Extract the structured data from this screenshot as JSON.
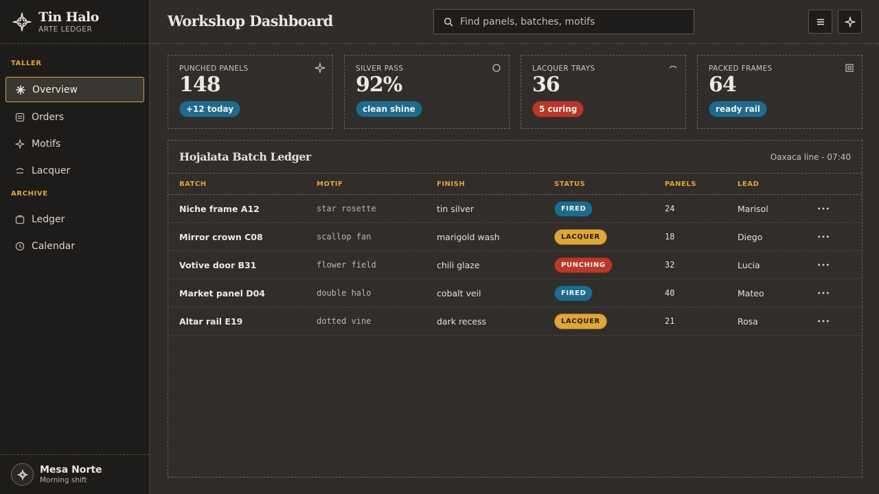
{
  "brand": {
    "title": "Tin Halo",
    "subtitle": "ARTE LEDGER",
    "icon": "star-compass-icon"
  },
  "sidebar": {
    "sections": [
      {
        "label": "TALLER",
        "items": [
          {
            "label": "Overview",
            "icon": "asterisk-icon",
            "active": true
          },
          {
            "label": "Orders",
            "icon": "list-icon"
          },
          {
            "label": "Motifs",
            "icon": "star-icon"
          },
          {
            "label": "Lacquer",
            "icon": "brush-icon"
          }
        ]
      },
      {
        "label": "ARCHIVE",
        "items": [
          {
            "label": "Ledger",
            "icon": "folder-icon"
          },
          {
            "label": "Calendar",
            "icon": "clock-icon"
          }
        ]
      }
    ],
    "user": {
      "name": "Mesa Norte",
      "shift": "Morning shift",
      "icon": "star-compass-icon"
    }
  },
  "header": {
    "title": "Workshop Dashboard",
    "search_placeholder": "Find panels, batches, motifs",
    "search_value": "",
    "buttons": [
      {
        "icon": "menu-icon"
      },
      {
        "icon": "sparkle-icon"
      }
    ]
  },
  "stats": [
    {
      "label": "PUNCHED PANELS",
      "value": "148",
      "badge": "+12 today",
      "badge_color": "#1f6b8e",
      "icon": "sparkle-icon"
    },
    {
      "label": "SILVER PASS",
      "value": "92%",
      "badge": "clean shine",
      "badge_color": "#1f6b8e",
      "icon": "circle-icon"
    },
    {
      "label": "LACQUER TRAYS",
      "value": "36",
      "badge": "5 curing",
      "badge_color": "#b8382b",
      "icon": "arc-icon"
    },
    {
      "label": "PACKED FRAMES",
      "value": "64",
      "badge": "ready rail",
      "badge_color": "#1f6b8e",
      "icon": "box-icon"
    }
  ],
  "ledger": {
    "title": "Hojalata Batch Ledger",
    "meta": "Oaxaca line - 07:40",
    "columns": [
      "BATCH",
      "MOTIF",
      "FINISH",
      "STATUS",
      "PANELS",
      "LEAD"
    ],
    "rows": [
      {
        "batch": "Niche frame A12",
        "motif": "star rosette",
        "finish": "tin silver",
        "status": "FIRED",
        "panels": "24",
        "lead": "Marisol"
      },
      {
        "batch": "Mirror crown C08",
        "motif": "scallop fan",
        "finish": "marigold wash",
        "status": "LACQUER",
        "panels": "18",
        "lead": "Diego"
      },
      {
        "batch": "Votive door B31",
        "motif": "flower field",
        "finish": "chili glaze",
        "status": "PUNCHING",
        "panels": "32",
        "lead": "Lucia"
      },
      {
        "batch": "Market panel D04",
        "motif": "double halo",
        "finish": "cobalt veil",
        "status": "FIRED",
        "panels": "40",
        "lead": "Mateo"
      },
      {
        "batch": "Altar rail E19",
        "motif": "dotted vine",
        "finish": "dark recess",
        "status": "LACQUER",
        "panels": "21",
        "lead": "Rosa"
      }
    ],
    "status_colors": {
      "FIRED": {
        "bg": "#1f6b8e",
        "fg": "#f2f0ea"
      },
      "LACQUER": {
        "bg": "#e0a63a",
        "fg": "#2a2017"
      },
      "PUNCHING": {
        "bg": "#b8382b",
        "fg": "#f5e9e2"
      }
    }
  }
}
